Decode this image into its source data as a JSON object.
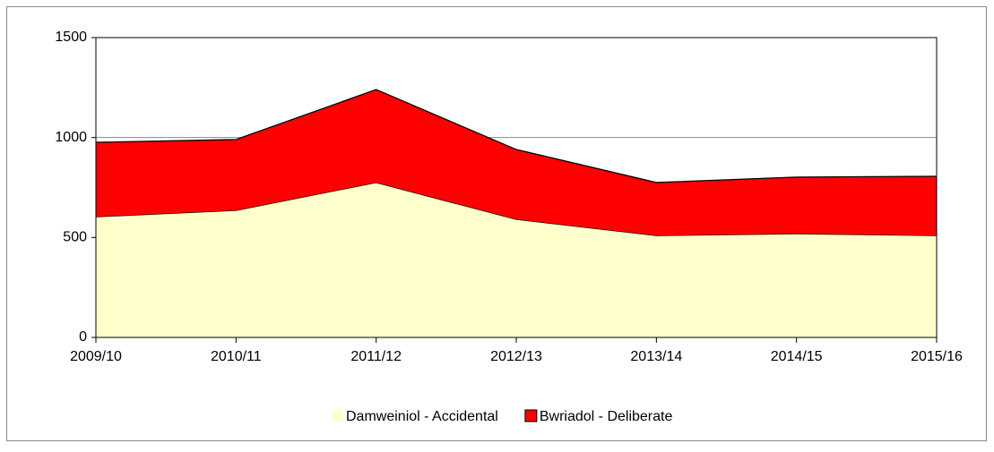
{
  "chart_data": {
    "type": "stacked_area",
    "categories": [
      "2009/10",
      "2010/11",
      "2011/12",
      "2012/13",
      "2013/14",
      "2014/15",
      "2015/16"
    ],
    "series": [
      {
        "name": "Damweiniol - Accidental",
        "color": "#ffffcc",
        "values": [
          604,
          636,
          775,
          591,
          510,
          519,
          510
        ]
      },
      {
        "name": "Bwriadol - Deliberate",
        "color": "#ff0000",
        "values": [
          372,
          354,
          465,
          349,
          265,
          283,
          296
        ]
      }
    ],
    "ylim": [
      0,
      1500
    ],
    "yticks": [
      0,
      500,
      1000,
      1500
    ],
    "grid": true,
    "legend": "bottom"
  }
}
